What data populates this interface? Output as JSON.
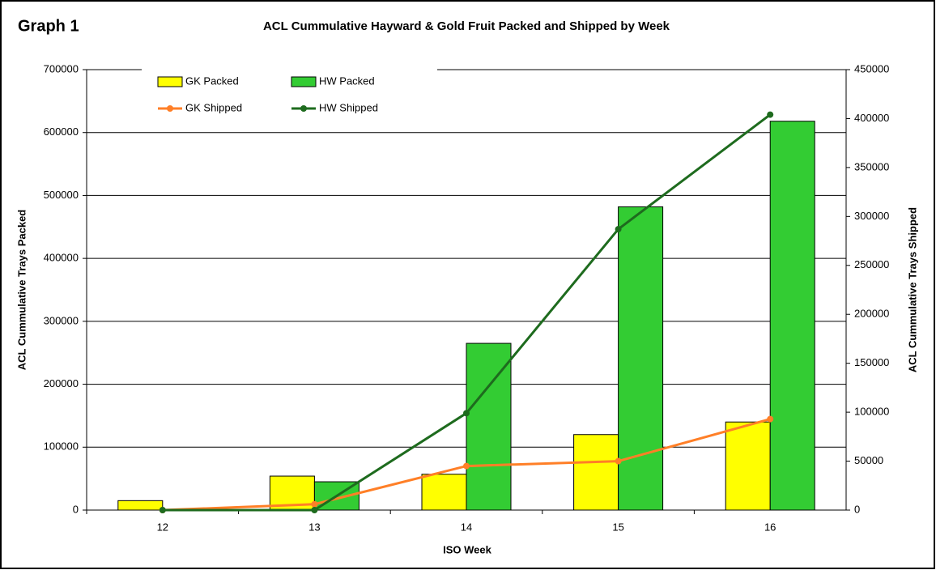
{
  "chart_data": {
    "type": "bar_line",
    "label": "Graph 1",
    "title": "ACL Cummulative Hayward & Gold Fruit Packed and Shipped by Week",
    "x_label": "ISO Week",
    "y_label": "ACL Cummulative Trays Packed",
    "y2_label": "ACL Cummulative Trays Shipped",
    "categories": [
      "12",
      "13",
      "14",
      "15",
      "16"
    ],
    "series": [
      {
        "name": "GK Packed",
        "color": "#ffff00",
        "kind": "bar",
        "values": [
          15000,
          54000,
          57000,
          120000,
          140000
        ]
      },
      {
        "name": "HW Packed",
        "color": "#33cc33",
        "kind": "bar",
        "values": [
          0,
          45000,
          265000,
          482000,
          618000
        ]
      },
      {
        "name": "GK Shipped",
        "color": "#ff7f27",
        "kind": "line",
        "axis": "y2",
        "values": [
          0,
          6000,
          45000,
          50000,
          93000
        ]
      },
      {
        "name": "HW Shipped",
        "color": "#1e6b1e",
        "kind": "line",
        "axis": "y2",
        "values": [
          0,
          0,
          99000,
          287000,
          404000
        ]
      }
    ],
    "ylim": [
      0,
      700000
    ],
    "yticks": [
      0,
      100000,
      200000,
      300000,
      400000,
      500000,
      600000,
      700000
    ],
    "y2lim": [
      0,
      450000
    ],
    "y2ticks": [
      0,
      50000,
      100000,
      150000,
      200000,
      250000,
      300000,
      350000,
      400000,
      450000
    ],
    "grid": true,
    "legend": "top-left"
  }
}
